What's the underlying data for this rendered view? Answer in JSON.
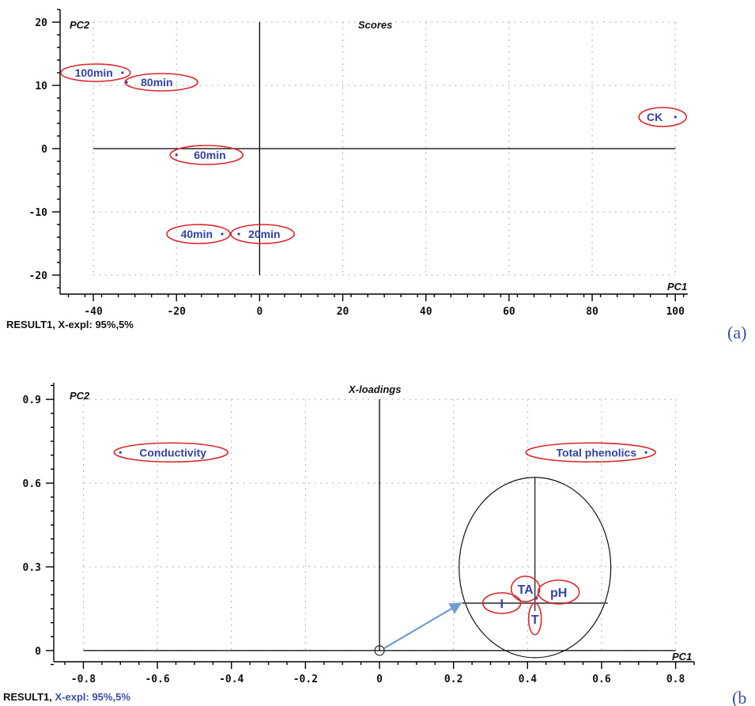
{
  "chart_data": [
    {
      "type": "scatter",
      "title": "Scores",
      "ylabel": "PC2",
      "xlabel": "PC1",
      "footer": "RESULT1, X-expl: 95%,5%",
      "panel_tag": "(a)",
      "xlim": [
        -48,
        103
      ],
      "ylim": [
        -23,
        22
      ],
      "xticks": [
        -40,
        -20,
        0,
        20,
        40,
        60,
        80,
        100
      ],
      "yticks": [
        20,
        10,
        0,
        -10,
        -20
      ],
      "grid": true,
      "points": [
        {
          "label": "100min",
          "x": -33,
          "y": 12
        },
        {
          "label": "80min",
          "x": -32,
          "y": 10.5
        },
        {
          "label": "60min",
          "x": -20,
          "y": -1
        },
        {
          "label": "40min",
          "x": -9,
          "y": -13.5
        },
        {
          "label": "20min",
          "x": -5,
          "y": -13.5
        },
        {
          "label": "CK",
          "x": 100,
          "y": 5
        }
      ]
    },
    {
      "type": "scatter",
      "title": "X-loadings",
      "ylabel": "PC2",
      "xlabel": "PC1",
      "footer_prefix": "RESULT1, ",
      "footer_suffix": "X-expl: 95%,5%",
      "panel_tag": "(b",
      "xlim": [
        -0.88,
        0.85
      ],
      "ylim": [
        -0.04,
        0.96
      ],
      "xticks": [
        -0.8,
        -0.6,
        -0.4,
        -0.2,
        0,
        0.2,
        0.4,
        0.6,
        0.8
      ],
      "yticks": [
        0.9,
        0.6,
        0.3,
        0
      ],
      "grid": true,
      "points": [
        {
          "label": "Conductivity",
          "x": -0.7,
          "y": 0.71
        },
        {
          "label": "Total phenolics",
          "x": 0.72,
          "y": 0.71
        }
      ],
      "inset_points": [
        {
          "label": "TA",
          "x": 0.4,
          "y": 0.23
        },
        {
          "label": "pH",
          "x": 0.44,
          "y": 0.21
        },
        {
          "label": "I",
          "x": 0.35,
          "y": 0.17
        },
        {
          "label": "T",
          "x": 0.41,
          "y": 0.15
        }
      ],
      "inset_origin": [
        0.42,
        0.17
      ],
      "arrow": {
        "from": [
          0,
          0
        ],
        "to": [
          0.22,
          0.17
        ]
      }
    }
  ],
  "colors": {
    "point": "#3343a3",
    "ring": "#d9262b",
    "arrow": "#6f9fd0",
    "axis": "#000000"
  }
}
